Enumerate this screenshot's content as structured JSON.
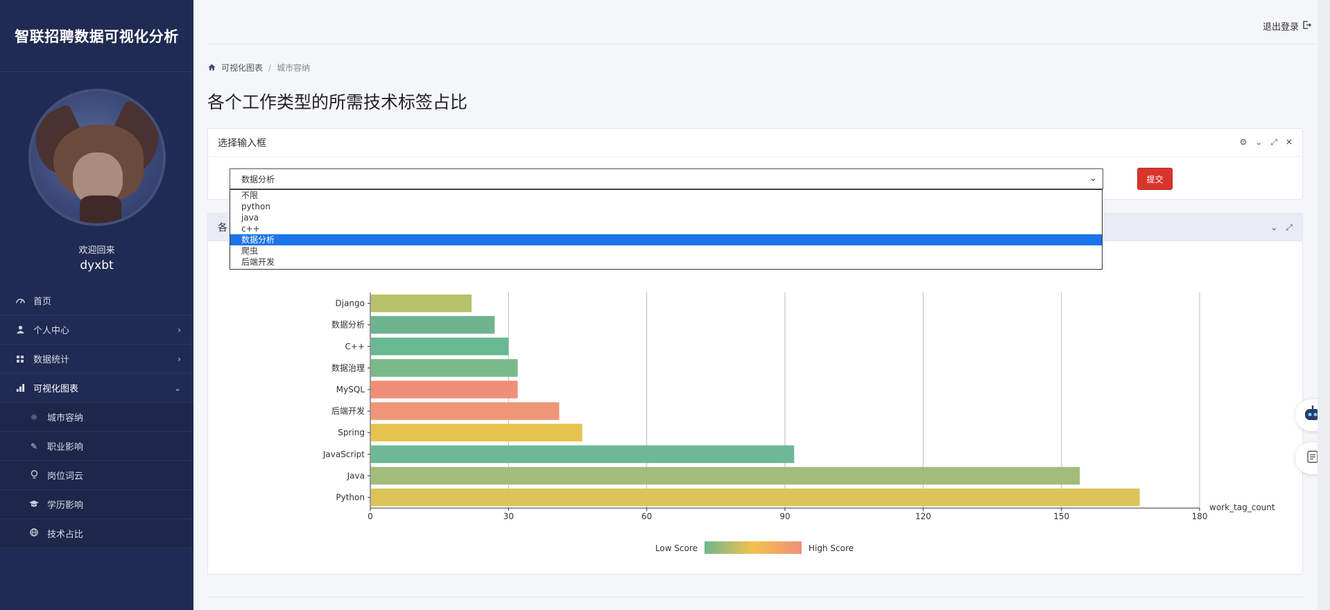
{
  "sidebar": {
    "brand": "智联招聘数据可视化分析",
    "welcome": "欢迎回来",
    "username": "dyxbt",
    "items": [
      {
        "label": "首页",
        "icon": "dashboard-icon"
      },
      {
        "label": "个人中心",
        "icon": "user-icon"
      },
      {
        "label": "数据统计",
        "icon": "grid-icon"
      },
      {
        "label": "可视化图表",
        "icon": "bar-chart-icon"
      }
    ],
    "subitems": [
      {
        "label": "城市容纳",
        "icon": "sun-icon"
      },
      {
        "label": "职业影响",
        "icon": "feather-icon"
      },
      {
        "label": "岗位词云",
        "icon": "lightbulb-icon"
      },
      {
        "label": "学历影响",
        "icon": "graduation-cap-icon"
      },
      {
        "label": "技术占比",
        "icon": "globe-icon"
      }
    ]
  },
  "header": {
    "logout": "退出登录"
  },
  "breadcrumb": {
    "home": "可视化图表",
    "current": "城市容纳"
  },
  "page_title": "各个工作类型的所需技术标签占比",
  "select_card": {
    "title": "选择输入框",
    "selected": "数据分析",
    "options": [
      "不限",
      "python",
      "java",
      "c++",
      "数据分析",
      "爬虫",
      "后端开发"
    ],
    "submit": "提交"
  },
  "chart_card": {
    "title_fragment": "各"
  },
  "chart_data": {
    "type": "bar",
    "orientation": "horizontal",
    "categories": [
      "Python",
      "Java",
      "JavaScript",
      "Spring",
      "后端开发",
      "MySQL",
      "数据治理",
      "C++",
      "数据分析",
      "Django"
    ],
    "values": [
      167,
      154,
      92,
      46,
      41,
      32,
      32,
      30,
      27,
      22
    ],
    "xlabel": "work_tag_count",
    "xlim": [
      0,
      180
    ],
    "xticks": [
      0,
      30,
      60,
      90,
      120,
      150,
      180
    ],
    "colors": [
      "#dcc45b",
      "#a2bd7a",
      "#6db896",
      "#e6c24e",
      "#ef9678",
      "#ef8f77",
      "#7ab98a",
      "#68b892",
      "#6fb48f",
      "#b8c26b"
    ],
    "legend": {
      "low": "Low Score",
      "high": "High Score",
      "gradient": [
        "#6fb78f",
        "#f4c14c",
        "#ef8f7a"
      ]
    }
  }
}
